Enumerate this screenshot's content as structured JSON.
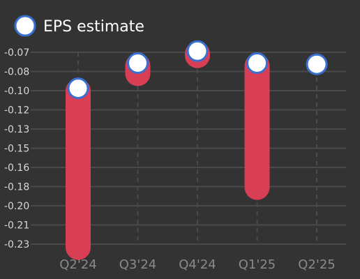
{
  "chart_data": {
    "type": "range-bar-with-markers",
    "categories": [
      "Q2'24",
      "Q3'24",
      "Q4'24",
      "Q1'25",
      "Q2'25"
    ],
    "series": [
      {
        "name": "EPS estimate",
        "values": [
          -0.1,
          -0.079,
          -0.069,
          -0.079,
          -0.08
        ]
      },
      {
        "values": [
          -0.235,
          -0.09,
          -0.075,
          -0.185,
          null
        ]
      }
    ],
    "y_ticks": [
      "-0.07",
      "-0.08",
      "-0.10",
      "-0.12",
      "-0.13",
      "-0.15",
      "-0.16",
      "-0.18",
      "-0.20",
      "-0.21",
      "-0.23"
    ],
    "ylim": [
      -0.235,
      -0.065
    ],
    "grid": {
      "horizontal": true,
      "vertical": "dashed"
    },
    "legend": {
      "position": "top-left",
      "label": "EPS estimate"
    },
    "colors": {
      "background": "#333333",
      "bar": "#d83f55",
      "marker_fill": "#ffffff",
      "marker_stroke": "#3a6fd0",
      "grid": "#4a4a4a",
      "y_tick_text": "#d8d8d8",
      "x_tick_text": "#8a8a8a",
      "legend_text": "#ffffff"
    }
  }
}
